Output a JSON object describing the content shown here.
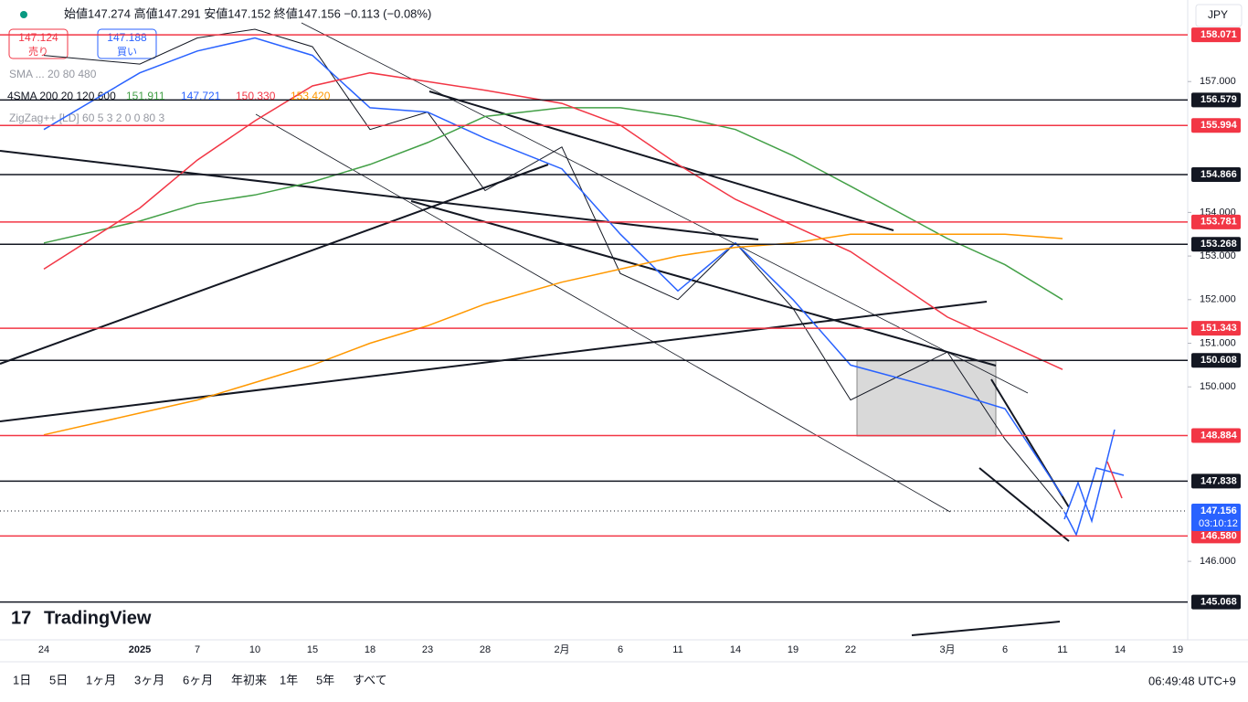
{
  "chart_data": {
    "type": "line",
    "categories": [
      "24",
      "2025",
      "7",
      "10",
      "15",
      "18",
      "23",
      "28",
      "2月",
      "6",
      "11",
      "14",
      "19",
      "22",
      "3月",
      "6",
      "11",
      "14",
      "19"
    ],
    "series": [
      {
        "name": "close",
        "color": "#131722",
        "values": [
          157.6,
          157.4,
          158.0,
          158.2,
          157.8,
          155.9,
          156.3,
          154.5,
          155.5,
          152.6,
          152.0,
          153.3,
          151.8,
          149.7,
          150.8,
          148.8,
          147.2,
          null,
          null
        ]
      },
      {
        "name": "SMA 20",
        "color": "#2962ff",
        "values": [
          155.9,
          157.2,
          157.7,
          158.0,
          157.6,
          156.4,
          156.3,
          155.7,
          155.0,
          153.5,
          152.2,
          153.3,
          152.0,
          150.5,
          149.9,
          149.5,
          147.5,
          null,
          null
        ]
      },
      {
        "name": "SMA 120",
        "color": "#43a047",
        "values": [
          153.3,
          153.8,
          154.2,
          154.4,
          154.7,
          155.1,
          155.6,
          156.2,
          156.4,
          156.4,
          156.2,
          155.9,
          155.3,
          154.6,
          153.4,
          152.8,
          152.0,
          null,
          null
        ]
      },
      {
        "name": "SMA 200",
        "color": "#f23645",
        "values": [
          152.7,
          154.1,
          155.2,
          156.1,
          156.9,
          157.2,
          157.0,
          156.8,
          156.5,
          156.0,
          155.1,
          154.3,
          153.7,
          153.1,
          151.6,
          151.0,
          150.4,
          null,
          null
        ]
      },
      {
        "name": "SMA 600",
        "color": "#ff9800",
        "values": [
          148.9,
          149.4,
          149.7,
          150.1,
          150.5,
          151.0,
          151.4,
          151.9,
          152.4,
          152.7,
          153.0,
          153.2,
          153.3,
          153.5,
          153.5,
          153.5,
          153.4,
          null,
          null
        ]
      }
    ],
    "levels": {
      "values": [
        158.071,
        156.579,
        155.994,
        154.866,
        153.781,
        153.268,
        151.343,
        150.608,
        148.884,
        147.838,
        146.58,
        145.068
      ],
      "value_labels": [
        "158.071",
        "156.579",
        "155.994",
        "154.866",
        "153.781",
        "153.268",
        "151.343",
        "150.608",
        "148.884",
        "147.838",
        "146.580",
        "145.068"
      ],
      "colors": [
        "#f23645",
        "#131722",
        "#f23645",
        "#131722",
        "#f23645",
        "#131722",
        "#f23645",
        "#131722",
        "#f23645",
        "#131722",
        "#f23645",
        "#131722"
      ]
    },
    "last_price": 147.156,
    "countdown": "03:10:12",
    "last_color": "#2962ff",
    "ylim": [
      144.2,
      158.87
    ],
    "yticks": [
      {
        "value": 146,
        "label": "146.000"
      },
      {
        "value": 150,
        "label": "150.000"
      },
      {
        "value": 151,
        "label": "151.000"
      },
      {
        "value": 152,
        "label": "152.000"
      },
      {
        "value": 153,
        "label": "153.000"
      },
      {
        "value": 154,
        "label": "154.000"
      },
      {
        "value": 157,
        "label": "157.000"
      }
    ],
    "grid": false
  },
  "ui": {
    "ohlc": "始値147.274 高値147.291 安値147.152 終値147.156 −0.113 (−0.08%)",
    "sell_price": "147.124",
    "sell": "売り",
    "buy_price": "147.188",
    "buy": "買い",
    "indicator1": "SMA ... 20 80 480",
    "indicator2": "4SMA 200 20 120 600",
    "sma_values": [
      "151.911",
      "147.721",
      "150.330",
      "153.420"
    ],
    "indicator3": "ZigZag++ [LD] 60 5 3 2 0 0 80 3",
    "currency": "JPY",
    "logo": "TradingView",
    "ranges": [
      "1日",
      "5日",
      "1ヶ月",
      "3ヶ月",
      "6ヶ月",
      "年初来",
      "1年",
      "5年",
      "すべて"
    ],
    "clock": "06:49:48 UTC+9"
  }
}
